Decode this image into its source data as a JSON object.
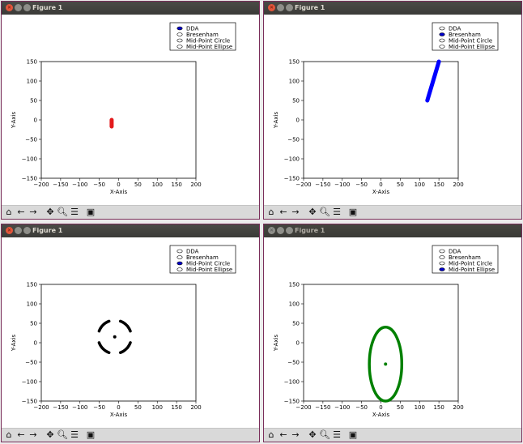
{
  "figures": [
    {
      "title": "Figure 1",
      "active": true,
      "legend": [
        {
          "label": "DDA",
          "selected": true
        },
        {
          "label": "Bresenham",
          "selected": false
        },
        {
          "label": "Mid-Point Circle",
          "selected": false
        },
        {
          "label": "Mid-Point Ellipse",
          "selected": false
        }
      ],
      "chart_data": {
        "type": "line",
        "xlabel": "X-Axis",
        "ylabel": "Y-Axis",
        "xlim": [
          -200,
          200
        ],
        "ylim": [
          -150,
          150
        ],
        "xticks": [
          -200,
          -150,
          -100,
          -50,
          0,
          50,
          100,
          150,
          200
        ],
        "yticks": [
          -150,
          -100,
          -50,
          0,
          50,
          100,
          150
        ],
        "color": "#e31a1c",
        "series": [
          {
            "kind": "segment",
            "points": [
              [
                -18,
                0
              ],
              [
                -18,
                -17
              ]
            ]
          }
        ]
      }
    },
    {
      "title": "Figure 1",
      "active": true,
      "legend": [
        {
          "label": "DDA",
          "selected": false
        },
        {
          "label": "Bresenham",
          "selected": true
        },
        {
          "label": "Mid-Point Circle",
          "selected": false
        },
        {
          "label": "Mid-Point Ellipse",
          "selected": false
        }
      ],
      "chart_data": {
        "type": "line",
        "xlabel": "X-Axis",
        "ylabel": "Y-Axis",
        "xlim": [
          -200,
          200
        ],
        "ylim": [
          -150,
          150
        ],
        "xticks": [
          -200,
          -150,
          -100,
          -50,
          0,
          50,
          100,
          150,
          200
        ],
        "yticks": [
          -150,
          -100,
          -50,
          0,
          50,
          100,
          150
        ],
        "color": "#0000ff",
        "series": [
          {
            "kind": "segment",
            "points": [
              [
                120,
                50
              ],
              [
                150,
                150
              ]
            ]
          }
        ]
      }
    },
    {
      "title": "Figure 1",
      "active": true,
      "legend": [
        {
          "label": "DDA",
          "selected": false
        },
        {
          "label": "Bresenham",
          "selected": false
        },
        {
          "label": "Mid-Point Circle",
          "selected": true
        },
        {
          "label": "Mid-Point Ellipse",
          "selected": false
        }
      ],
      "chart_data": {
        "type": "scatter",
        "xlabel": "X-Axis",
        "ylabel": "Y-Axis",
        "xlim": [
          -200,
          200
        ],
        "ylim": [
          -150,
          150
        ],
        "xticks": [
          -200,
          -150,
          -100,
          -50,
          0,
          50,
          100,
          150,
          200
        ],
        "yticks": [
          -150,
          -100,
          -50,
          0,
          50,
          100,
          150
        ],
        "color": "#000000",
        "series": [
          {
            "kind": "dashed-circle",
            "center": [
              -10,
              15
            ],
            "radius": 43
          },
          {
            "kind": "center-point",
            "center": [
              -10,
              15
            ]
          }
        ]
      }
    },
    {
      "title": "Figure 1",
      "active": false,
      "legend": [
        {
          "label": "DDA",
          "selected": false
        },
        {
          "label": "Bresenham",
          "selected": false
        },
        {
          "label": "Mid-Point Circle",
          "selected": false
        },
        {
          "label": "Mid-Point Ellipse",
          "selected": true
        }
      ],
      "chart_data": {
        "type": "scatter",
        "xlabel": "X-Axis",
        "ylabel": "Y-Axis",
        "xlim": [
          -200,
          200
        ],
        "ylim": [
          -150,
          150
        ],
        "xticks": [
          -200,
          -150,
          -100,
          -50,
          0,
          50,
          100,
          150,
          200
        ],
        "yticks": [
          -150,
          -100,
          -50,
          0,
          50,
          100,
          150
        ],
        "color": "#008000",
        "series": [
          {
            "kind": "ellipse",
            "center": [
              12,
              -55
            ],
            "rx": 42,
            "ry": 95
          },
          {
            "kind": "center-point",
            "center": [
              12,
              -55
            ]
          }
        ]
      }
    }
  ],
  "toolbar": {
    "icons": [
      "home-icon",
      "back-arrow-icon",
      "forward-arrow-icon",
      "pan-icon",
      "zoom-icon",
      "configure-subplots-icon",
      "save-icon"
    ]
  }
}
